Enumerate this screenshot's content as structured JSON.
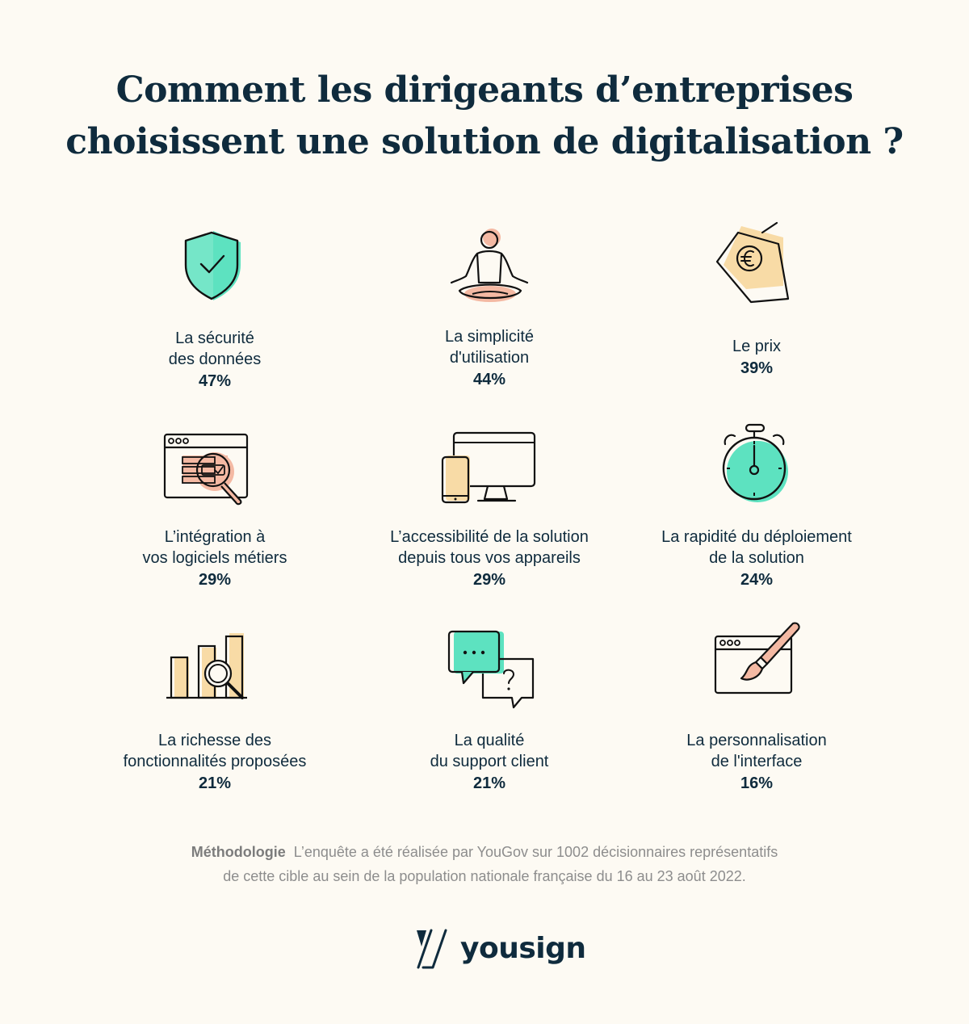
{
  "title": {
    "line1": "Comment les dirigeants d’entreprises",
    "line2_prefix": "choisissent une solution de ",
    "line2_bold": "digitalisation",
    "line2_suffix": " ?"
  },
  "criteria": [
    {
      "label_line1": "La sécurité",
      "label_line2": "des données",
      "percent": "47%",
      "icon": "shield-check-icon"
    },
    {
      "label_line1": "La simplicité",
      "label_line2": "d'utilisation",
      "percent": "44%",
      "icon": "meditation-icon"
    },
    {
      "label_line1": "Le prix",
      "label_line2": "",
      "percent": "39%",
      "icon": "euro-price-tag-icon"
    },
    {
      "label_line1": "L’intégration à",
      "label_line2": "vos logiciels métiers",
      "percent": "29%",
      "icon": "browser-search-icon"
    },
    {
      "label_line1": "L’accessibilité de la solution",
      "label_line2": "depuis tous vos appareils",
      "percent": "29%",
      "icon": "devices-icon"
    },
    {
      "label_line1": "La rapidité du déploiement",
      "label_line2": "de la solution",
      "percent": "24%",
      "icon": "stopwatch-icon"
    },
    {
      "label_line1": "La richesse des",
      "label_line2": "fonctionnalités proposées",
      "percent": "21%",
      "icon": "bar-chart-magnifier-icon"
    },
    {
      "label_line1": "La qualité",
      "label_line2": "du support client",
      "percent": "21%",
      "icon": "chat-bubbles-icon"
    },
    {
      "label_line1": "La personnalisation",
      "label_line2": "de l'interface",
      "percent": "16%",
      "icon": "browser-paintbrush-icon"
    }
  ],
  "methodology": {
    "heading": "Méthodologie",
    "line1": "L’enquête a été réalisée par YouGov sur 1002 décisionnaires représentatifs",
    "line2": "de cette cible au sein de la population nationale française du 16 au 23 août 2022."
  },
  "brand": {
    "name": "yousign"
  },
  "colors": {
    "navy": "#0f2b3d",
    "mint": "#5de2c0",
    "peach": "#f4b9a3",
    "sand": "#f8dba6",
    "background": "#fdfaf3",
    "gray_text": "#8d8d8d"
  }
}
